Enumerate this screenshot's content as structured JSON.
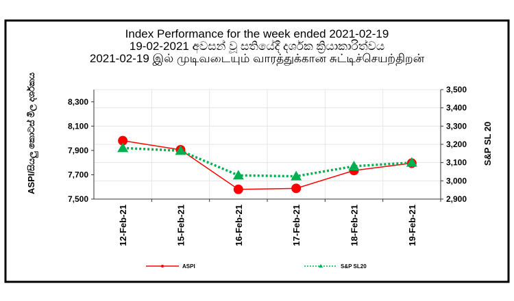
{
  "chart_data": {
    "type": "line",
    "title_lines": [
      "Index Performance for the week ended 2021-02-19",
      "19-02-2021 අවසන් වූ සතියේදී දර්ශක ක්‍රියාකාරිත්වය",
      "2021-02-19 இல் முடிவடையும் வாரத்துக்கான சுட்டிச்செயற்திறன்"
    ],
    "categories": [
      "12-Feb-21",
      "15-Feb-21",
      "16-Feb-21",
      "17-Feb-21",
      "18-Feb-21",
      "19-Feb-21"
    ],
    "series": [
      {
        "name": "ASPI",
        "axis": "left",
        "color": "#ff0000",
        "values": [
          7980,
          7905,
          7580,
          7588,
          7735,
          7795
        ]
      },
      {
        "name": "S&P SL20",
        "axis": "right",
        "color": "#00b050",
        "values": [
          3180,
          3165,
          3030,
          3025,
          3080,
          3100
        ]
      }
    ],
    "ylabel_left": "ASPI/සියලු කොටස් මිල දර්ශකය",
    "ylabel_right": "S&P SL 20",
    "ylim_left": [
      7500,
      8400
    ],
    "yticks_left": [
      "7,500",
      "7,700",
      "7,900",
      "8,100",
      "8,300"
    ],
    "ylim_right": [
      2900,
      3500
    ],
    "yticks_right": [
      "2,900",
      "3,000",
      "3,100",
      "3,200",
      "3,300",
      "3,400",
      "3,500"
    ],
    "grid": true,
    "legend_position": "bottom"
  }
}
